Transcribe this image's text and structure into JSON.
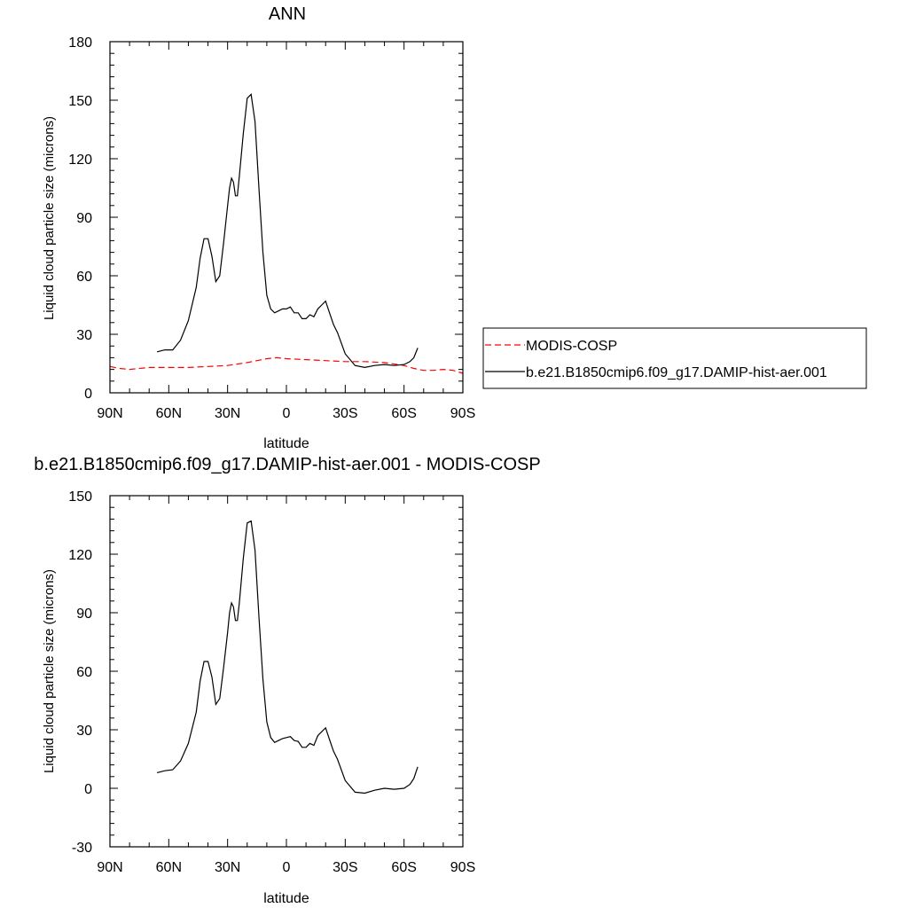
{
  "chart_data": [
    {
      "type": "line",
      "title": "ANN",
      "xlabel": "latitude",
      "ylabel": "Liquid cloud particle size (microns)",
      "xlim": [
        90,
        -90
      ],
      "ylim": [
        0,
        180
      ],
      "xticks": [
        90,
        60,
        30,
        0,
        -30,
        -60,
        -90
      ],
      "xtick_labels": [
        "90N",
        "60N",
        "30N",
        "0",
        "30S",
        "60S",
        "90S"
      ],
      "yticks": [
        0,
        30,
        60,
        90,
        120,
        150,
        180
      ],
      "ytick_labels": [
        "0",
        "30",
        "60",
        "90",
        "120",
        "150",
        "180"
      ],
      "grid": false,
      "legend": {
        "placement": "right",
        "entries": [
          {
            "label": "MODIS-COSP",
            "style": "dashed",
            "color": "#ff0000"
          },
          {
            "label": "b.e21.B1850cmip6.f09_g17.DAMIP-hist-aer.001",
            "style": "solid",
            "color": "#000000"
          }
        ]
      },
      "series": [
        {
          "name": "MODIS-COSP",
          "color": "#ff0000",
          "style": "dashed",
          "x": [
            90,
            85,
            80,
            70,
            60,
            50,
            40,
            30,
            20,
            15,
            10,
            5,
            0,
            -10,
            -20,
            -30,
            -40,
            -50,
            -60,
            -65,
            -70,
            -75,
            -80,
            -85,
            -90
          ],
          "y": [
            13.5,
            12.5,
            12,
            13,
            13,
            13,
            13.5,
            14,
            15.5,
            16.5,
            17.5,
            18,
            17.5,
            17,
            16.5,
            16,
            16,
            15.5,
            14,
            12.5,
            11.5,
            11.5,
            12,
            11.5,
            10
          ]
        },
        {
          "name": "b.e21.B1850cmip6.f09_g17.DAMIP-hist-aer.001",
          "color": "#000000",
          "style": "solid",
          "x": [
            66,
            62,
            58,
            54,
            50,
            46,
            44,
            42,
            40,
            38,
            36,
            34,
            32,
            30,
            29,
            28,
            27,
            26,
            25,
            24,
            22,
            20,
            18,
            16,
            14,
            12,
            10,
            8,
            6,
            4,
            2,
            0,
            -2,
            -4,
            -6,
            -8,
            -10,
            -12,
            -14,
            -16,
            -18,
            -20,
            -22,
            -24,
            -26,
            -30,
            -35,
            -40,
            -45,
            -50,
            -55,
            -60,
            -63,
            -65,
            -67
          ],
          "y": [
            21,
            22,
            22,
            27,
            37,
            54,
            69,
            79,
            79,
            70,
            57,
            60,
            77,
            96,
            105,
            110,
            108,
            101,
            101,
            111,
            133,
            151,
            153,
            139,
            105,
            72,
            50,
            43,
            41,
            42,
            43,
            43,
            44,
            41,
            41,
            38,
            38,
            40,
            39,
            43,
            45,
            47,
            41,
            35,
            31,
            20,
            14,
            13,
            14,
            14.5,
            14,
            14.5,
            16,
            18,
            23
          ]
        }
      ]
    },
    {
      "type": "line",
      "title": "b.e21.B1850cmip6.f09_g17.DAMIP-hist-aer.001 - MODIS-COSP",
      "xlabel": "latitude",
      "ylabel": "Liquid cloud particle size (microns)",
      "xlim": [
        90,
        -90
      ],
      "ylim": [
        -30,
        150
      ],
      "xticks": [
        90,
        60,
        30,
        0,
        -30,
        -60,
        -90
      ],
      "xtick_labels": [
        "90N",
        "60N",
        "30N",
        "0",
        "30S",
        "60S",
        "90S"
      ],
      "yticks": [
        -30,
        0,
        30,
        60,
        90,
        120,
        150
      ],
      "ytick_labels": [
        "-30",
        "0",
        "30",
        "60",
        "90",
        "120",
        "150"
      ],
      "grid": false,
      "series": [
        {
          "color": "#000000",
          "style": "solid",
          "x": [
            66,
            62,
            58,
            54,
            50,
            46,
            44,
            42,
            40,
            38,
            36,
            34,
            32,
            30,
            29,
            28,
            27,
            26,
            25,
            24,
            22,
            20,
            18,
            16,
            14,
            12,
            10,
            8,
            6,
            4,
            2,
            0,
            -2,
            -4,
            -6,
            -8,
            -10,
            -12,
            -14,
            -16,
            -18,
            -20,
            -22,
            -24,
            -26,
            -30,
            -35,
            -40,
            -45,
            -50,
            -55,
            -60,
            -63,
            -65,
            -67
          ],
          "y": [
            8,
            9,
            9.5,
            14,
            23,
            39,
            55,
            65,
            65,
            57,
            43,
            46,
            62,
            80,
            90,
            95,
            93,
            86,
            86,
            95,
            118,
            136,
            137,
            122,
            88,
            56,
            34,
            26,
            23.5,
            24.5,
            25.5,
            26,
            26.5,
            24.5,
            24,
            21,
            21,
            23,
            22,
            27,
            29,
            31,
            25,
            19,
            15,
            4,
            -2,
            -2.5,
            -1,
            0,
            -0.5,
            0,
            2,
            5,
            11
          ]
        }
      ]
    }
  ]
}
